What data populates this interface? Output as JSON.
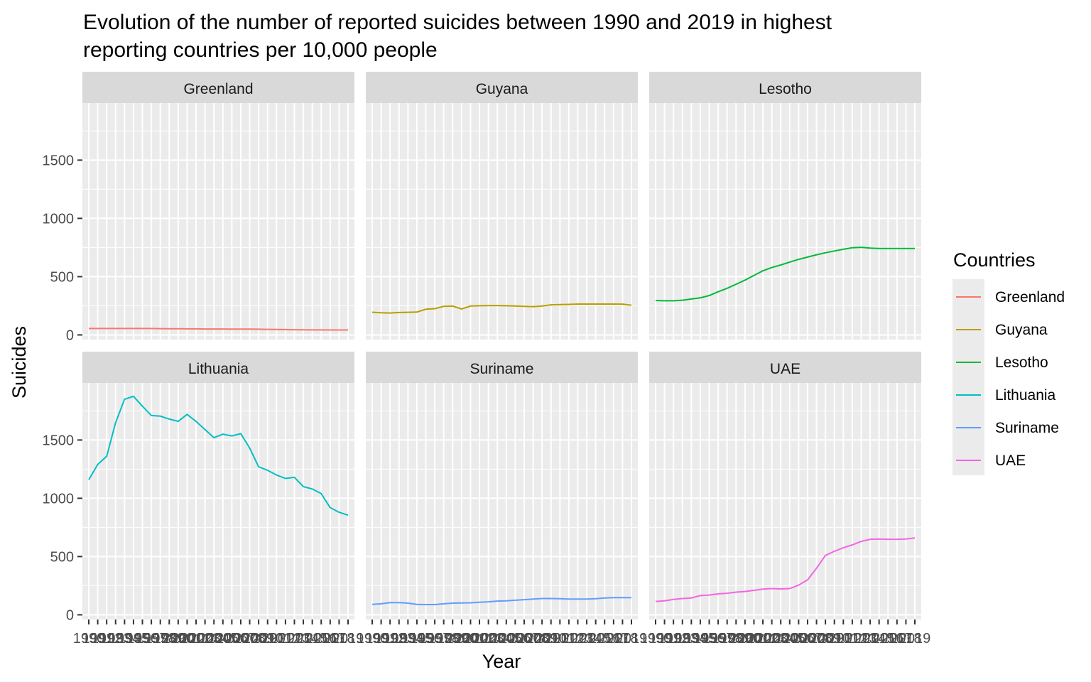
{
  "chart_data": {
    "type": "line",
    "title_lines": [
      "Evolution of the number of reported suicides between 1990 and 2019 in highest",
      "reporting countries per 10,000 people"
    ],
    "xlabel": "Year",
    "ylabel": "Suicides",
    "legend_title": "Countries",
    "legend_position": "right",
    "grid": true,
    "facets": "wrap 2 rows x 3 columns, shared axes",
    "x": [
      1990,
      1991,
      1992,
      1993,
      1994,
      1995,
      1996,
      1997,
      1998,
      1999,
      2000,
      2001,
      2002,
      2003,
      2004,
      2005,
      2006,
      2007,
      2008,
      2009,
      2010,
      2011,
      2012,
      2013,
      2014,
      2015,
      2016,
      2017,
      2018,
      2019
    ],
    "ylim": [
      -40,
      1990
    ],
    "yticks": [
      0,
      500,
      1000,
      1500
    ],
    "series": [
      {
        "name": "Greenland",
        "color": "#F8766D",
        "values": [
          55,
          55,
          55,
          55,
          55,
          55,
          55,
          55,
          54,
          53,
          53,
          52,
          52,
          51,
          51,
          51,
          50,
          50,
          50,
          49,
          48,
          47,
          46,
          45,
          44,
          43,
          43,
          42,
          42,
          42
        ]
      },
      {
        "name": "Guyana",
        "color": "#B79F00",
        "values": [
          195,
          190,
          188,
          192,
          194,
          196,
          220,
          225,
          245,
          248,
          222,
          248,
          250,
          252,
          252,
          250,
          248,
          245,
          243,
          248,
          258,
          260,
          262,
          265,
          265,
          265,
          265,
          265,
          264,
          255
        ]
      },
      {
        "name": "Lesotho",
        "color": "#00BA38",
        "values": [
          295,
          293,
          293,
          298,
          308,
          318,
          338,
          370,
          400,
          435,
          470,
          510,
          550,
          578,
          600,
          625,
          648,
          668,
          688,
          705,
          720,
          735,
          748,
          752,
          745,
          742,
          742,
          742,
          742,
          742
        ]
      },
      {
        "name": "Lithuania",
        "color": "#00BFC4",
        "values": [
          1160,
          1290,
          1360,
          1650,
          1850,
          1875,
          1790,
          1710,
          1705,
          1680,
          1660,
          1720,
          1660,
          1590,
          1520,
          1550,
          1535,
          1555,
          1430,
          1270,
          1240,
          1200,
          1170,
          1180,
          1100,
          1080,
          1040,
          920,
          880,
          855
        ]
      },
      {
        "name": "Suriname",
        "color": "#619CFF",
        "values": [
          90,
          95,
          105,
          105,
          100,
          90,
          88,
          88,
          95,
          100,
          102,
          103,
          108,
          112,
          118,
          120,
          125,
          130,
          135,
          140,
          140,
          138,
          135,
          135,
          135,
          138,
          145,
          148,
          148,
          148
        ]
      },
      {
        "name": "UAE",
        "color": "#F564E3",
        "values": [
          115,
          120,
          132,
          140,
          145,
          165,
          170,
          180,
          185,
          195,
          200,
          210,
          220,
          225,
          222,
          225,
          255,
          300,
          400,
          510,
          545,
          575,
          600,
          630,
          648,
          650,
          648,
          648,
          650,
          660
        ]
      }
    ]
  }
}
